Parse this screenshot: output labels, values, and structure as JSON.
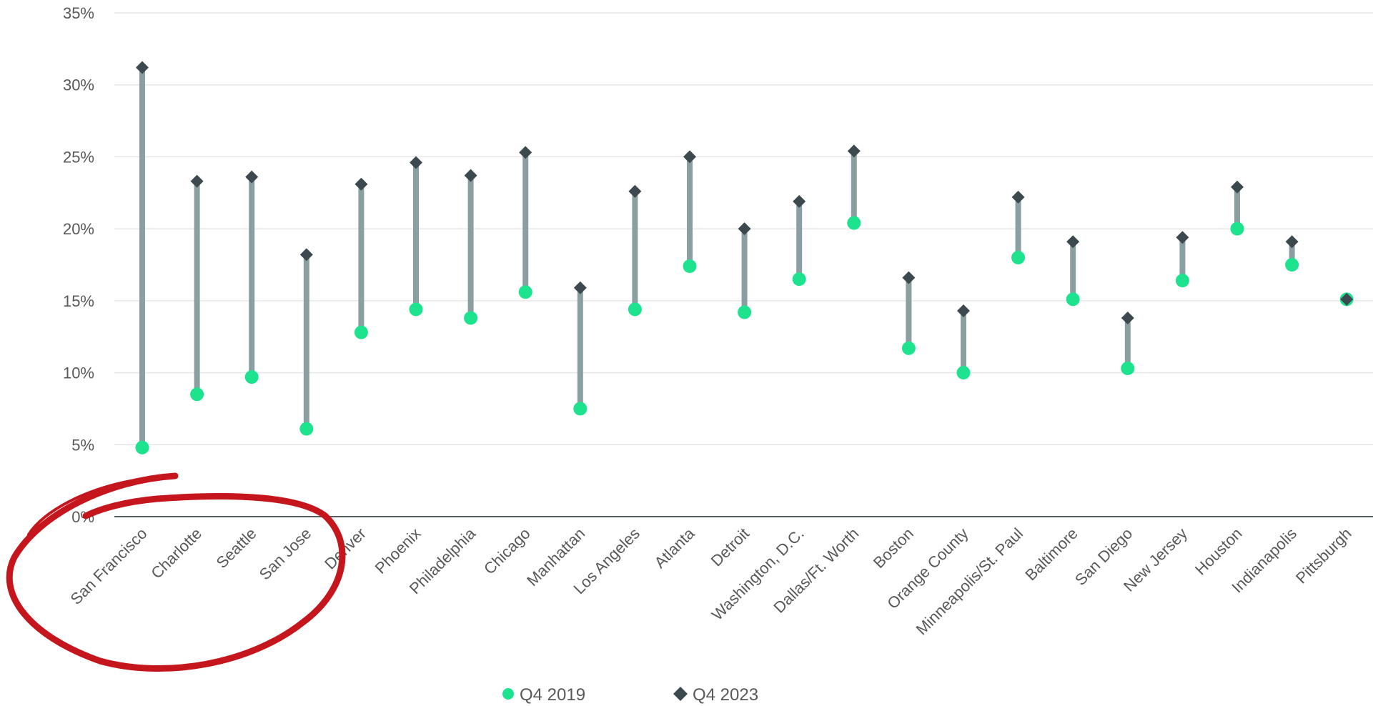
{
  "chart_data": {
    "type": "dumbbell",
    "title": "",
    "xlabel": "",
    "ylabel": "",
    "ylim": [
      0,
      35
    ],
    "y_ticks": [
      "0%",
      "5%",
      "10%",
      "15%",
      "20%",
      "25%",
      "30%",
      "35%"
    ],
    "y_tick_values": [
      0,
      5,
      10,
      15,
      20,
      25,
      30,
      35
    ],
    "grid": true,
    "legend_position": "bottom",
    "categories": [
      "San Francisco",
      "Charlotte",
      "Seattle",
      "San Jose",
      "Denver",
      "Phoenix",
      "Philadelphia",
      "Chicago",
      "Manhattan",
      "Los Angeles",
      "Atlanta",
      "Detroit",
      "Washington, D.C.",
      "Dallas/Ft. Worth",
      "Boston",
      "Orange County",
      "Minneapolis/St. Paul",
      "Baltimore",
      "San Diego",
      "New Jersey",
      "Houston",
      "Indianapolis",
      "Pittsburgh"
    ],
    "series": [
      {
        "name": "Q4 2019",
        "marker": "circle",
        "color": "#1de38f",
        "values": [
          4.8,
          8.5,
          9.7,
          6.1,
          12.8,
          14.4,
          13.8,
          15.6,
          7.5,
          14.4,
          17.4,
          14.2,
          16.5,
          20.4,
          11.7,
          10.0,
          18.0,
          15.1,
          10.3,
          16.4,
          20.0,
          17.5,
          15.1
        ]
      },
      {
        "name": "Q4 2023",
        "marker": "diamond",
        "color": "#3c4a4f",
        "values": [
          31.2,
          23.3,
          23.6,
          18.2,
          23.1,
          24.6,
          23.7,
          25.3,
          15.9,
          22.6,
          25.0,
          20.0,
          21.9,
          25.4,
          16.6,
          14.3,
          22.2,
          19.1,
          13.8,
          19.4,
          22.9,
          19.1,
          15.1
        ]
      }
    ],
    "connector_color": "#8a9fa1",
    "annotation": {
      "shape": "hand-drawn-circle",
      "color": "#c4161c",
      "encloses": [
        "San Francisco",
        "Charlotte",
        "Seattle",
        "San Jose"
      ]
    }
  }
}
